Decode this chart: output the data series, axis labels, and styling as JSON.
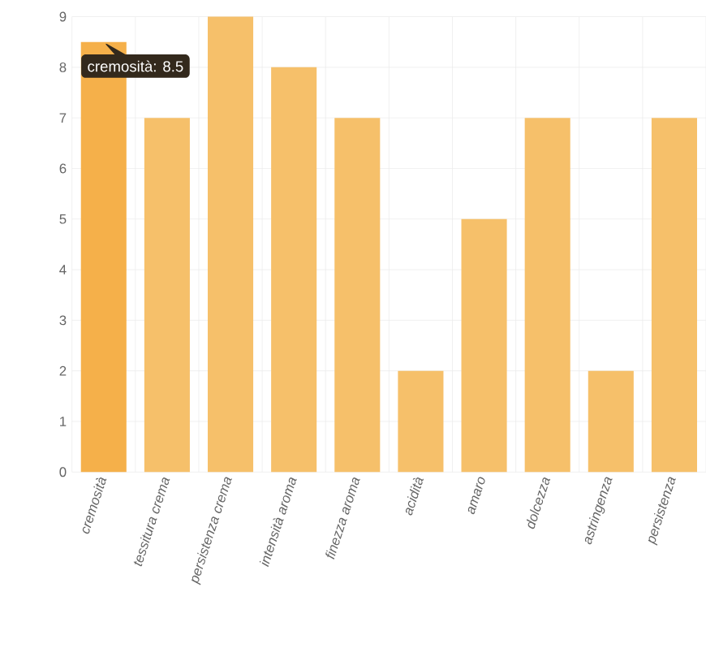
{
  "chart_data": {
    "type": "bar",
    "categories": [
      "cremosità",
      "tessitura crema",
      "persistenza crema",
      "intensità aroma",
      "finezza aroma",
      "acidità",
      "amaro",
      "dolcezza",
      "astringenza",
      "persistenza"
    ],
    "values": [
      8.5,
      7,
      9,
      8,
      7,
      2,
      5,
      7,
      2,
      7
    ],
    "colors": [
      "#f5b04a",
      "#f6c06a",
      "#f6c06a",
      "#f6c06a",
      "#f6c06a",
      "#f6c06a",
      "#f6c06a",
      "#f6c06a",
      "#f6c06a",
      "#f6c06a"
    ],
    "ylim": [
      0,
      9
    ],
    "yticks": [
      0,
      1,
      2,
      3,
      4,
      5,
      6,
      7,
      8,
      9
    ],
    "grid": true,
    "annotations": [
      {
        "text": "cremosità: 8.5",
        "x": "cremosità",
        "y": 8.5
      }
    ]
  }
}
